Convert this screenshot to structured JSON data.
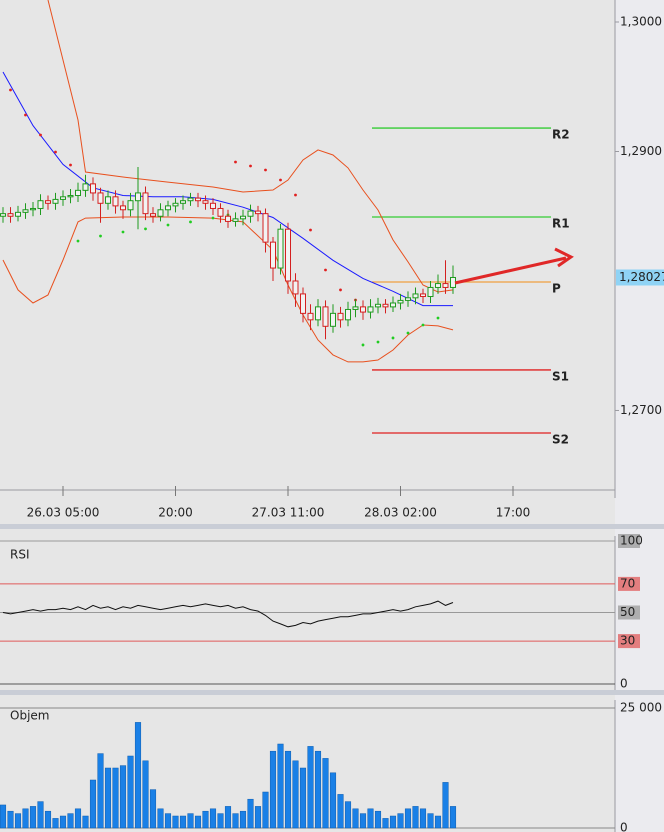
{
  "chart_data": [
    {
      "type": "candlestick",
      "open": [
        1.285,
        1.2852,
        1.285,
        1.2853,
        1.2855,
        1.2856,
        1.2862,
        1.286,
        1.2863,
        1.2865,
        1.2866,
        1.287,
        1.2875,
        1.2868,
        1.286,
        1.2865,
        1.2858,
        1.2855,
        1.2862,
        1.2868,
        1.2852,
        1.285,
        1.2855,
        1.2858,
        1.286,
        1.2862,
        1.2864,
        1.2862,
        1.286,
        1.2856,
        1.285,
        1.2846,
        1.2848,
        1.285,
        1.2854,
        1.2852,
        1.283,
        1.281,
        1.284,
        1.28,
        1.279,
        1.2775,
        1.277,
        1.278,
        1.2765,
        1.2775,
        1.277,
        1.2778,
        1.278,
        1.2776,
        1.278,
        1.2782,
        1.278,
        1.2783,
        1.2785,
        1.2787,
        1.279,
        1.2788,
        1.2795,
        1.2798,
        1.2795
      ],
      "high": [
        1.2857,
        1.2857,
        1.2858,
        1.286,
        1.2861,
        1.2867,
        1.2866,
        1.2868,
        1.287,
        1.2871,
        1.2876,
        1.2882,
        1.288,
        1.2872,
        1.287,
        1.287,
        1.2862,
        1.2868,
        1.2888,
        1.2873,
        1.2857,
        1.286,
        1.2862,
        1.2864,
        1.2866,
        1.2868,
        1.2868,
        1.2866,
        1.2864,
        1.286,
        1.2855,
        1.2853,
        1.2855,
        1.2859,
        1.2858,
        1.2856,
        1.2834,
        1.2844,
        1.2845,
        1.2806,
        1.2795,
        1.2782,
        1.2786,
        1.2785,
        1.2782,
        1.278,
        1.2784,
        1.2786,
        1.2785,
        1.2786,
        1.2787,
        1.2786,
        1.2788,
        1.279,
        1.2792,
        1.2795,
        1.2794,
        1.28,
        1.2805,
        1.2816,
        1.2812
      ],
      "low": [
        1.2845,
        1.2845,
        1.2846,
        1.2848,
        1.285,
        1.2851,
        1.2855,
        1.2855,
        1.2858,
        1.286,
        1.2861,
        1.2865,
        1.2862,
        1.2845,
        1.2855,
        1.2852,
        1.2848,
        1.285,
        1.284,
        1.2847,
        1.2845,
        1.2846,
        1.285,
        1.2853,
        1.2855,
        1.2858,
        1.2857,
        1.2855,
        1.2851,
        1.2845,
        1.2841,
        1.2842,
        1.2843,
        1.2845,
        1.2846,
        1.2822,
        1.28,
        1.2805,
        1.279,
        1.278,
        1.2768,
        1.2762,
        1.2765,
        1.2755,
        1.276,
        1.2764,
        1.2765,
        1.2772,
        1.277,
        1.2771,
        1.2775,
        1.2775,
        1.2776,
        1.2778,
        1.278,
        1.2782,
        1.2783,
        1.2783,
        1.279,
        1.279,
        1.279
      ],
      "close": [
        1.2852,
        1.285,
        1.2853,
        1.2855,
        1.2856,
        1.2862,
        1.286,
        1.2863,
        1.2865,
        1.2866,
        1.287,
        1.2875,
        1.2868,
        1.286,
        1.2865,
        1.2858,
        1.2855,
        1.2862,
        1.2868,
        1.2852,
        1.285,
        1.2855,
        1.2858,
        1.286,
        1.2862,
        1.2864,
        1.2862,
        1.286,
        1.2856,
        1.285,
        1.2846,
        1.2848,
        1.285,
        1.2854,
        1.2852,
        1.283,
        1.281,
        1.284,
        1.28,
        1.279,
        1.2775,
        1.277,
        1.278,
        1.2765,
        1.2775,
        1.277,
        1.2778,
        1.278,
        1.2776,
        1.278,
        1.2782,
        1.278,
        1.2783,
        1.2785,
        1.2787,
        1.279,
        1.2788,
        1.2795,
        1.2798,
        1.2795,
        1.28027
      ],
      "bull_color": "#1f9a1f",
      "bear_color": "#d42020",
      "xlim": [
        -0.4,
        81.6
      ],
      "ylim": [
        1.26324,
        1.3017
      ],
      "xticks": [
        {
          "value": 8,
          "label": "26.03 05:00"
        },
        {
          "value": 23,
          "label": "20:00"
        },
        {
          "value": 38,
          "label": "27.03 11:00"
        },
        {
          "value": 53,
          "label": "28.03 02:00"
        },
        {
          "value": 68,
          "label": "17:00"
        }
      ],
      "yticks": [
        {
          "value": 1.3,
          "label": "1,3000"
        },
        {
          "value": 1.29,
          "label": "1,2900"
        },
        {
          "value": 1.27,
          "label": "1,2700"
        }
      ],
      "last_price": {
        "value": 1.28027,
        "label": "1,28027"
      },
      "series": [
        {
          "style": "line",
          "color": "#1a1aff",
          "x": [
            0,
            4,
            8,
            12,
            16,
            20,
            24,
            28,
            32,
            36,
            40,
            44,
            48,
            52,
            56,
            60
          ],
          "values": [
            1.29614,
            1.292,
            1.289,
            1.2872,
            1.2866,
            1.2865,
            1.2865,
            1.2863,
            1.2857,
            1.2849,
            1.2833,
            1.2816,
            1.2802,
            1.2792,
            1.2781,
            1.2781
          ]
        },
        {
          "style": "line",
          "color": "#e8501e",
          "x": [
            6,
            8,
            10,
            11,
            16,
            22,
            28,
            32,
            36,
            38,
            40,
            42,
            44,
            46,
            48,
            50,
            52,
            54,
            56,
            58,
            60
          ],
          "values": [
            1.3017,
            1.29707,
            1.29243,
            1.28842,
            1.28803,
            1.28764,
            1.28726,
            1.28687,
            1.28703,
            1.2878,
            1.28934,
            1.29012,
            1.28973,
            1.28873,
            1.28703,
            1.28548,
            1.28317,
            1.28147,
            1.27969,
            1.27915,
            1.27931
          ]
        },
        {
          "style": "line",
          "color": "#e8501e",
          "x": [
            0,
            2,
            4,
            6,
            8,
            10,
            11,
            16,
            22,
            28,
            32,
            36,
            38,
            40,
            42,
            44,
            46,
            48,
            50,
            52,
            54,
            56,
            58,
            60
          ],
          "values": [
            1.28162,
            1.27931,
            1.2783,
            1.27892,
            1.28162,
            1.28456,
            1.28486,
            1.28494,
            1.28494,
            1.28486,
            1.28456,
            1.28239,
            1.27969,
            1.27737,
            1.27544,
            1.27429,
            1.27375,
            1.27375,
            1.2739,
            1.27467,
            1.27583,
            1.2766,
            1.27653,
            1.27622
          ]
        },
        {
          "style": "dots",
          "color": "#e02020",
          "x": [
            1,
            3,
            5,
            7,
            9,
            31,
            33,
            35,
            37,
            39,
            41,
            43,
            45,
            47
          ],
          "values": [
            1.29475,
            1.29282,
            1.29127,
            1.28996,
            1.28896,
            1.28919,
            1.28888,
            1.28857,
            1.2878,
            1.28664,
            1.28394,
            1.28085,
            1.27931,
            1.27853
          ]
        },
        {
          "style": "dots",
          "color": "#22cc22",
          "x": [
            10,
            13,
            16,
            19,
            22,
            25,
            28,
            30,
            48,
            50,
            52,
            54,
            56,
            58
          ],
          "values": [
            1.28309,
            1.28347,
            1.28378,
            1.28402,
            1.28432,
            1.28456,
            1.28486,
            1.2851,
            1.27506,
            1.27529,
            1.2756,
            1.27598,
            1.2766,
            1.27714
          ]
        }
      ],
      "levels": [
        {
          "label": "R2",
          "value": 1.29181,
          "color": "#33cc33"
        },
        {
          "label": "R1",
          "value": 1.28494,
          "color": "#33cc33"
        },
        {
          "label": "P",
          "value": 1.27992,
          "color": "#f0a040"
        },
        {
          "label": "S1",
          "value": 1.27313,
          "color": "#e02020"
        },
        {
          "label": "S2",
          "value": 1.26826,
          "color": "#e02020"
        }
      ]
    },
    {
      "type": "line",
      "title": "RSI",
      "color": "#111111",
      "xlim": [
        -0.4,
        81.6
      ],
      "ylim": [
        0,
        100
      ],
      "yticks": [
        0,
        30,
        50,
        70,
        100
      ],
      "tick_colors": [
        "#555555",
        "#e05a5a",
        "#999999",
        "#e05a5a",
        "#999999"
      ],
      "values": [
        50,
        49,
        50,
        51,
        52,
        51,
        52,
        52,
        53,
        52,
        54,
        52,
        55,
        53,
        54,
        52,
        54,
        53,
        55,
        54,
        53,
        52,
        53,
        54,
        55,
        54,
        55,
        56,
        55,
        54,
        55,
        53,
        54,
        52,
        51,
        48,
        44,
        42,
        40,
        41,
        43,
        42,
        44,
        45,
        46,
        47,
        47,
        48,
        49,
        49,
        50,
        51,
        52,
        51,
        52,
        54,
        55,
        56,
        58,
        55,
        57
      ]
    },
    {
      "type": "bar",
      "title": "Objem",
      "color": "#1a80e6",
      "xlim": [
        -0.4,
        81.6
      ],
      "ylim": [
        0,
        25000
      ],
      "yticks": [
        0,
        {
          "value": 25000,
          "label": "25 000"
        }
      ],
      "values": [
        4800,
        3500,
        3000,
        4000,
        4500,
        5500,
        3500,
        2000,
        2500,
        3000,
        4000,
        2500,
        10000,
        15500,
        12500,
        12500,
        13000,
        15000,
        22000,
        14000,
        8000,
        4000,
        3000,
        2500,
        2500,
        3000,
        2500,
        3500,
        4000,
        3000,
        4500,
        3000,
        3500,
        6000,
        4500,
        7500,
        16000,
        17500,
        16000,
        14000,
        12500,
        17000,
        16000,
        14500,
        11500,
        7000,
        5500,
        4000,
        3000,
        4000,
        3500,
        2000,
        2500,
        3000,
        4000,
        4500,
        4000,
        3000,
        2500,
        9500,
        4500
      ]
    }
  ]
}
